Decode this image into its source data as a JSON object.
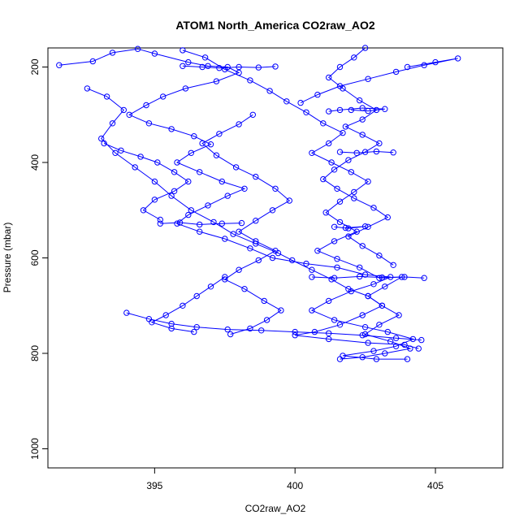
{
  "chart_data": {
    "type": "scatter",
    "title": "ATOM1 North_America CO2raw_AO2",
    "xlabel": "CO2raw_AO2",
    "ylabel": "Pressure (mbar)",
    "xlim": [
      391.2,
      407.4
    ],
    "ylim": [
      1040,
      160
    ],
    "y_inverted": true,
    "xticks": [
      395,
      400,
      405
    ],
    "yticks": [
      200,
      400,
      600,
      800,
      1000
    ],
    "grid": false,
    "style": {
      "color": "#0000ff",
      "markers": "open-circle",
      "connected": true
    },
    "series": [
      {
        "points": [
          [
            391.6,
            196
          ],
          [
            392.8,
            188
          ],
          [
            393.5,
            170
          ],
          [
            394.4,
            162
          ],
          [
            395.0,
            172
          ],
          [
            396.2,
            190
          ],
          [
            396.9,
            198
          ],
          [
            397.6,
            200
          ],
          [
            398.0,
            212
          ],
          [
            397.2,
            230
          ],
          [
            396.1,
            245
          ],
          [
            395.3,
            262
          ],
          [
            394.7,
            280
          ],
          [
            394.1,
            300
          ],
          [
            394.8,
            318
          ],
          [
            395.6,
            330
          ],
          [
            396.4,
            345
          ],
          [
            397.0,
            362
          ],
          [
            396.3,
            380
          ],
          [
            395.8,
            400
          ],
          [
            396.6,
            420
          ],
          [
            397.4,
            440
          ],
          [
            398.2,
            455
          ],
          [
            397.6,
            470
          ],
          [
            396.9,
            490
          ],
          [
            396.2,
            510
          ],
          [
            395.8,
            528
          ],
          [
            396.6,
            545
          ],
          [
            397.5,
            560
          ],
          [
            398.4,
            580
          ],
          [
            399.2,
            600
          ],
          [
            400.4,
            612
          ],
          [
            401.5,
            620
          ],
          [
            402.5,
            635
          ],
          [
            403.4,
            640
          ],
          [
            402.8,
            655
          ],
          [
            402.0,
            670
          ],
          [
            401.2,
            690
          ],
          [
            400.6,
            710
          ],
          [
            401.4,
            730
          ],
          [
            402.5,
            745
          ],
          [
            403.3,
            755
          ],
          [
            404.2,
            770
          ],
          [
            403.6,
            785
          ],
          [
            402.8,
            795
          ],
          [
            401.7,
            805
          ],
          [
            402.9,
            812
          ],
          [
            404.0,
            812
          ]
        ]
      },
      {
        "points": [
          [
            392.6,
            245
          ],
          [
            393.3,
            262
          ],
          [
            393.9,
            290
          ],
          [
            393.5,
            318
          ],
          [
            393.1,
            350
          ],
          [
            393.6,
            380
          ],
          [
            394.3,
            410
          ],
          [
            395.0,
            440
          ],
          [
            395.6,
            470
          ],
          [
            396.3,
            500
          ],
          [
            397.1,
            525
          ],
          [
            397.8,
            550
          ],
          [
            398.6,
            570
          ],
          [
            399.4,
            590
          ],
          [
            399.9,
            605
          ],
          [
            400.6,
            625
          ],
          [
            401.3,
            645
          ],
          [
            401.9,
            665
          ],
          [
            402.6,
            680
          ],
          [
            403.1,
            700
          ],
          [
            402.4,
            720
          ],
          [
            401.6,
            740
          ],
          [
            400.7,
            755
          ],
          [
            400.0,
            762
          ],
          [
            401.2,
            770
          ],
          [
            402.6,
            778
          ],
          [
            403.9,
            782
          ],
          [
            404.4,
            790
          ]
        ]
      },
      {
        "points": [
          [
            396.0,
            165
          ],
          [
            396.8,
            180
          ],
          [
            397.5,
            205
          ],
          [
            398.4,
            228
          ],
          [
            399.1,
            250
          ],
          [
            399.7,
            272
          ],
          [
            400.4,
            295
          ],
          [
            401.0,
            318
          ],
          [
            401.7,
            338
          ],
          [
            401.2,
            360
          ],
          [
            400.6,
            380
          ],
          [
            401.3,
            400
          ],
          [
            402.0,
            420
          ],
          [
            402.6,
            440
          ],
          [
            402.1,
            462
          ],
          [
            401.6,
            482
          ],
          [
            401.1,
            505
          ],
          [
            401.6,
            525
          ],
          [
            402.2,
            545
          ],
          [
            401.4,
            565
          ],
          [
            400.8,
            585
          ],
          [
            401.5,
            602
          ],
          [
            402.3,
            620
          ],
          [
            403.0,
            642
          ],
          [
            403.8,
            640
          ],
          [
            403.2,
            660
          ],
          [
            402.6,
            680
          ],
          [
            403.1,
            700
          ],
          [
            403.7,
            720
          ],
          [
            403.0,
            740
          ],
          [
            402.5,
            760
          ],
          [
            403.4,
            775
          ],
          [
            404.1,
            790
          ],
          [
            403.2,
            800
          ],
          [
            402.4,
            808
          ],
          [
            401.6,
            812
          ]
        ]
      },
      {
        "points": [
          [
            402.5,
            160
          ],
          [
            402.1,
            180
          ],
          [
            401.6,
            200
          ],
          [
            401.2,
            222
          ],
          [
            401.7,
            245
          ],
          [
            402.3,
            270
          ],
          [
            402.9,
            290
          ],
          [
            402.4,
            310
          ],
          [
            401.8,
            325
          ],
          [
            402.4,
            342
          ],
          [
            403.0,
            360
          ],
          [
            402.5,
            378
          ],
          [
            401.9,
            395
          ],
          [
            401.4,
            415
          ],
          [
            401.0,
            435
          ],
          [
            401.5,
            455
          ],
          [
            402.1,
            475
          ],
          [
            402.8,
            495
          ],
          [
            403.3,
            515
          ],
          [
            402.6,
            535
          ],
          [
            401.9,
            555
          ],
          [
            402.4,
            575
          ],
          [
            403.0,
            595
          ],
          [
            403.5,
            615
          ]
        ]
      },
      {
        "points": [
          [
            398.5,
            300
          ],
          [
            398.0,
            320
          ],
          [
            397.3,
            340
          ],
          [
            396.7,
            360
          ],
          [
            397.2,
            385
          ],
          [
            397.9,
            410
          ],
          [
            398.6,
            430
          ],
          [
            399.3,
            455
          ],
          [
            399.8,
            480
          ],
          [
            399.2,
            500
          ],
          [
            398.6,
            522
          ],
          [
            398.0,
            545
          ],
          [
            398.6,
            565
          ],
          [
            399.3,
            585
          ],
          [
            398.7,
            605
          ],
          [
            398.0,
            625
          ],
          [
            397.5,
            645
          ],
          [
            398.2,
            665
          ],
          [
            398.9,
            690
          ],
          [
            399.5,
            710
          ],
          [
            399.0,
            730
          ],
          [
            398.4,
            748
          ],
          [
            397.7,
            760
          ]
        ]
      },
      {
        "points": [
          [
            394.0,
            715
          ],
          [
            394.8,
            728
          ],
          [
            395.6,
            738
          ],
          [
            396.5,
            745
          ],
          [
            397.6,
            750
          ],
          [
            398.8,
            752
          ],
          [
            400.0,
            755
          ],
          [
            401.2,
            758
          ],
          [
            402.4,
            762
          ],
          [
            403.6,
            768
          ],
          [
            404.5,
            772
          ]
        ]
      },
      {
        "points": [
          [
            397.5,
            640
          ],
          [
            397.0,
            660
          ],
          [
            396.5,
            680
          ],
          [
            396.0,
            700
          ],
          [
            395.4,
            720
          ],
          [
            394.9,
            735
          ],
          [
            395.6,
            748
          ],
          [
            396.4,
            755
          ]
        ]
      },
      {
        "points": [
          [
            393.2,
            360
          ],
          [
            393.8,
            375
          ],
          [
            394.5,
            388
          ],
          [
            395.1,
            400
          ],
          [
            395.7,
            420
          ],
          [
            396.2,
            440
          ],
          [
            395.7,
            460
          ],
          [
            395.0,
            478
          ],
          [
            394.6,
            500
          ],
          [
            395.2,
            520
          ]
        ]
      },
      {
        "points": [
          [
            404.0,
            200
          ],
          [
            405.0,
            190
          ],
          [
            405.8,
            182
          ],
          [
            404.6,
            196
          ],
          [
            403.6,
            210
          ],
          [
            402.6,
            225
          ],
          [
            401.6,
            240
          ],
          [
            400.8,
            258
          ],
          [
            400.2,
            275
          ]
        ]
      },
      {
        "points": [
          [
            402.0,
            290
          ],
          [
            402.6,
            292
          ],
          [
            403.2,
            288
          ],
          [
            402.4,
            286
          ],
          [
            401.6,
            290
          ],
          [
            401.2,
            293
          ]
        ]
      },
      {
        "points": [
          [
            396.0,
            198
          ],
          [
            396.7,
            200
          ],
          [
            397.3,
            202
          ],
          [
            398.0,
            200
          ],
          [
            398.7,
            201
          ],
          [
            399.3,
            199
          ]
        ]
      },
      {
        "points": [
          [
            395.2,
            528
          ],
          [
            395.9,
            526
          ],
          [
            396.6,
            530
          ],
          [
            397.4,
            528
          ],
          [
            398.1,
            527
          ]
        ]
      },
      {
        "points": [
          [
            401.4,
            535
          ],
          [
            401.9,
            538
          ],
          [
            402.5,
            534
          ],
          [
            401.8,
            537
          ]
        ]
      },
      {
        "points": [
          [
            401.6,
            378
          ],
          [
            402.2,
            380
          ],
          [
            402.9,
            377
          ],
          [
            403.5,
            379
          ]
        ]
      },
      {
        "points": [
          [
            400.6,
            640
          ],
          [
            401.4,
            642
          ],
          [
            402.3,
            639
          ],
          [
            403.1,
            641
          ],
          [
            403.9,
            640
          ],
          [
            404.6,
            642
          ]
        ]
      }
    ]
  }
}
